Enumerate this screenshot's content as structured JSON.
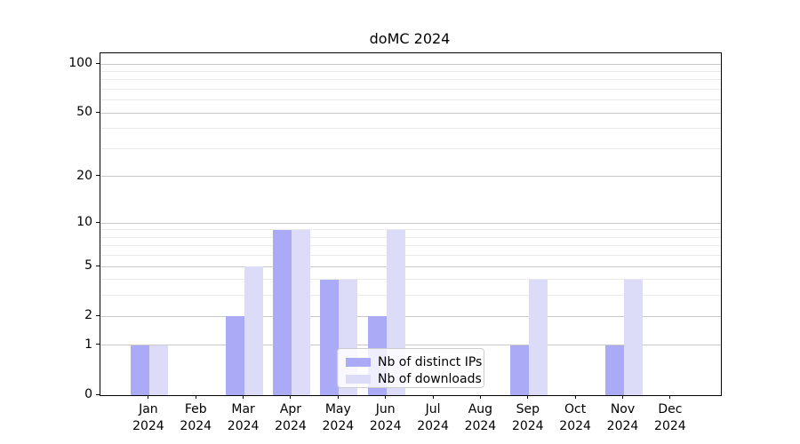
{
  "title": "doMC 2024",
  "colors": {
    "bar_distinct_ips": "#aaaaf7",
    "bar_downloads": "#dcdcf8",
    "grid_major": "#c9c9c9",
    "grid_minor": "#eaeaea",
    "axis": "#000000",
    "background": "#ffffff",
    "legend_border": "#cccccc",
    "text": "#000000"
  },
  "chart_data": {
    "type": "bar",
    "title": "doMC 2024",
    "categories": [
      "Jan",
      "Feb",
      "Mar",
      "Apr",
      "May",
      "Jun",
      "Jul",
      "Aug",
      "Sep",
      "Oct",
      "Nov",
      "Dec"
    ],
    "year_label": "2024",
    "series": [
      {
        "name": "Nb of distinct IPs",
        "color": "#aaaaf7",
        "values": [
          1,
          0,
          2,
          9,
          4,
          2,
          0,
          0,
          1,
          0,
          1,
          0
        ]
      },
      {
        "name": "Nb of downloads",
        "color": "#dcdcf8",
        "values": [
          1,
          0,
          5,
          9,
          4,
          9,
          0,
          0,
          4,
          0,
          4,
          0
        ]
      }
    ],
    "y_axis": {
      "scale": "log10(value+1)",
      "major_ticks": [
        0,
        1,
        2,
        5,
        10,
        20,
        50,
        100
      ],
      "minor_gridlines": [
        3,
        4,
        6,
        7,
        8,
        9,
        30,
        40,
        60,
        70,
        80,
        90
      ],
      "ylim": [
        0,
        116
      ]
    },
    "x_axis": {
      "label_lines": 2
    },
    "grid": "horizontal",
    "legend_position": "lower center"
  }
}
